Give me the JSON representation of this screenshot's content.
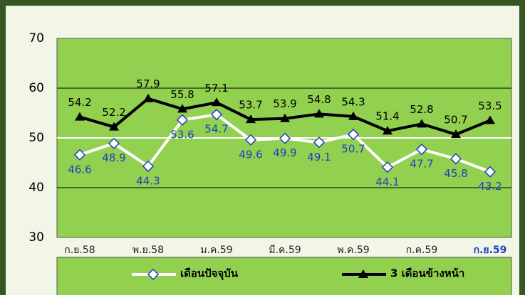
{
  "chart_data": {
    "type": "line",
    "categories": [
      "ก.ย.58",
      null,
      "พ.ย.58",
      null,
      "ม.ค.59",
      null,
      "มี.ค.59",
      null,
      "พ.ค.59",
      null,
      "ก.ค.59",
      null,
      "ก.ย.59"
    ],
    "series": [
      {
        "name": "เดือนปัจจุบัน",
        "color": "#ffffff",
        "marker_color": "#1f3fbf",
        "values": [
          46.6,
          48.9,
          44.3,
          53.6,
          54.7,
          49.6,
          49.9,
          49.1,
          50.7,
          44.1,
          47.7,
          45.8,
          43.2
        ]
      },
      {
        "name": "3 เดือนข้างหน้า",
        "color": "#000000",
        "marker_color": "#000000",
        "values": [
          54.2,
          52.2,
          57.9,
          55.8,
          57.1,
          53.7,
          53.9,
          54.8,
          54.3,
          51.4,
          52.8,
          50.7,
          53.5
        ]
      }
    ],
    "ylim": [
      30,
      70
    ],
    "yticks": [
      30,
      40,
      50,
      60,
      70
    ],
    "grid": true
  }
}
